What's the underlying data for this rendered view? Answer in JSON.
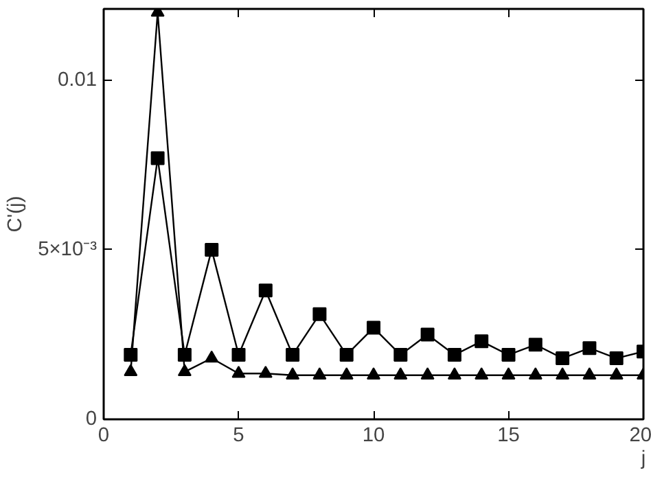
{
  "chart_data": {
    "type": "line",
    "xlabel": "j",
    "ylabel": "C'(j)",
    "x": [
      1,
      2,
      3,
      4,
      5,
      6,
      7,
      8,
      9,
      10,
      11,
      12,
      13,
      14,
      15,
      16,
      17,
      18,
      19,
      20
    ],
    "series": [
      {
        "color": "#000000",
        "marker": "square",
        "values": [
          0.0019,
          0.0077,
          0.0019,
          0.005,
          0.0019,
          0.0038,
          0.0019,
          0.0031,
          0.0019,
          0.0027,
          0.0019,
          0.0025,
          0.0019,
          0.0023,
          0.0019,
          0.0022,
          0.0018,
          0.0021,
          0.0018,
          0.002
        ]
      },
      {
        "color": "#000000",
        "marker": "triangle",
        "values": [
          0.0014,
          0.012,
          0.0014,
          0.0018,
          0.00135,
          0.00135,
          0.0013,
          0.0013,
          0.0013,
          0.0013,
          0.0013,
          0.0013,
          0.0013,
          0.0013,
          0.0013,
          0.0013,
          0.0013,
          0.0013,
          0.0013,
          0.0013
        ]
      }
    ],
    "xlim": [
      0,
      20
    ],
    "ylim": [
      0,
      0.0121
    ],
    "xticks": [
      0,
      5,
      10,
      15,
      20
    ],
    "yticks": [
      0,
      {
        "value": 0.005,
        "label": "5×10⁻³"
      },
      0.01
    ],
    "grid": false,
    "line_style": "solid"
  }
}
